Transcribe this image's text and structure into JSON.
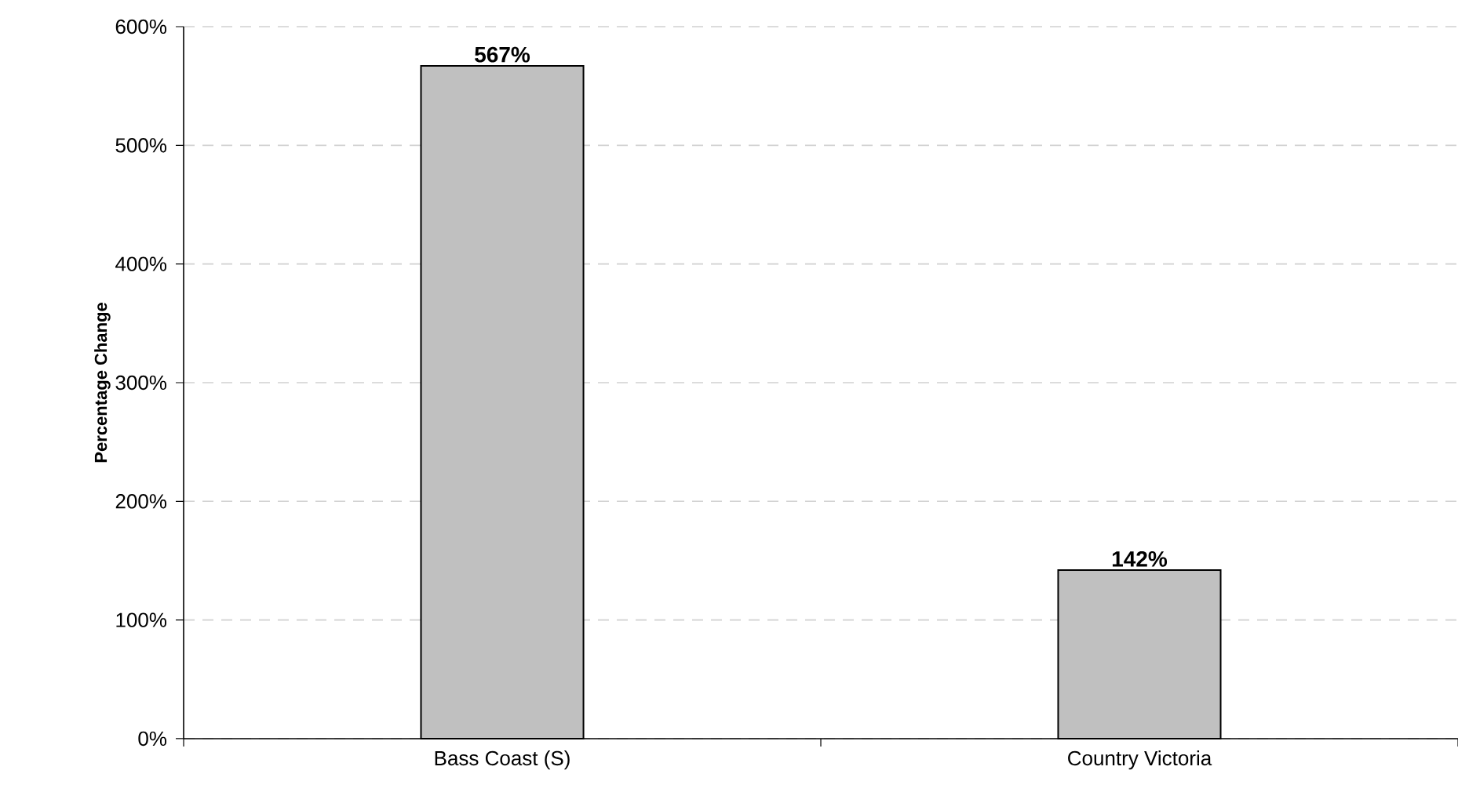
{
  "chart_data": {
    "type": "bar",
    "ylabel": "Percentage Change",
    "categories": [
      "Bass Coast (S)",
      "Country Victoria"
    ],
    "values": [
      567,
      142
    ],
    "color": "#c0c0c0",
    "value_labels": [
      "567%",
      "142%"
    ],
    "ylim": [
      0,
      600
    ],
    "yticks": [
      {
        "value": 0,
        "label": "0%"
      },
      {
        "value": 100,
        "label": "100%"
      },
      {
        "value": 200,
        "label": "200%"
      },
      {
        "value": 300,
        "label": "300%"
      },
      {
        "value": 400,
        "label": "400%"
      },
      {
        "value": 500,
        "label": "500%"
      },
      {
        "value": 600,
        "label": "600%"
      }
    ],
    "grid": "y"
  }
}
